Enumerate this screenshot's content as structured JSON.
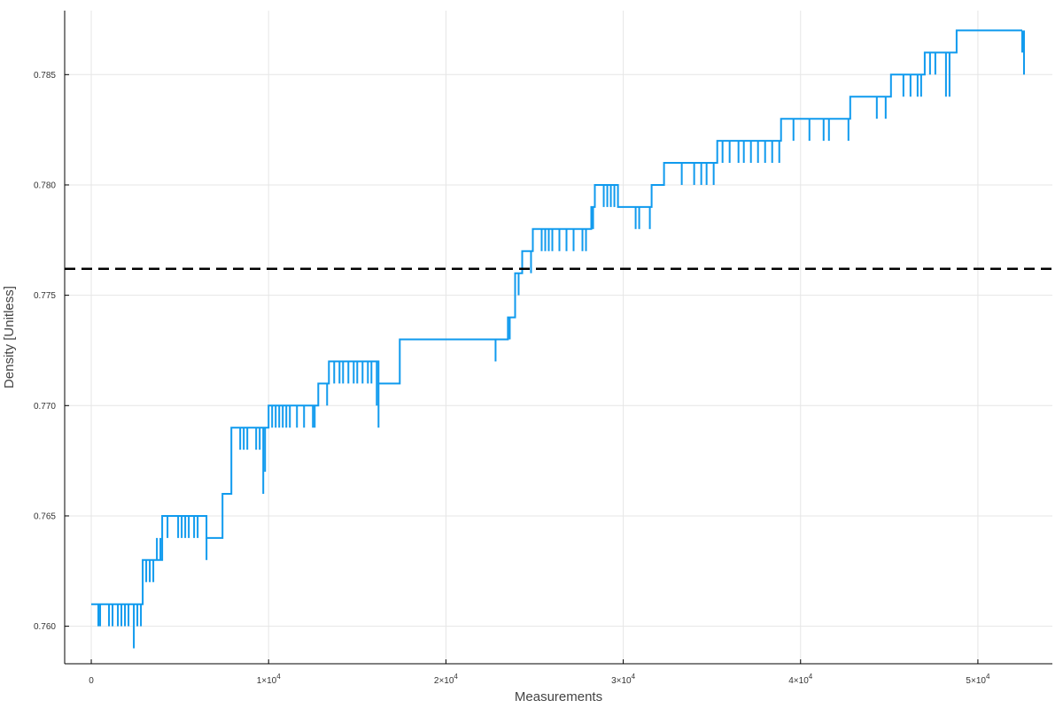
{
  "chart_data": {
    "type": "line",
    "title": "",
    "xlabel": "Measurements",
    "ylabel": "Density [Unitless]",
    "xlim": [
      -1500,
      54200
    ],
    "ylim": [
      0.7583,
      0.7879
    ],
    "grid": true,
    "legend": "none",
    "x_ticks": [
      {
        "value": 0,
        "label": "0",
        "exp": ""
      },
      {
        "value": 10000,
        "label": "1×10",
        "exp": "4"
      },
      {
        "value": 20000,
        "label": "2×10",
        "exp": "4"
      },
      {
        "value": 30000,
        "label": "3×10",
        "exp": "4"
      },
      {
        "value": 40000,
        "label": "4×10",
        "exp": "4"
      },
      {
        "value": 50000,
        "label": "5×10",
        "exp": "4"
      }
    ],
    "y_ticks": [
      {
        "value": 0.76,
        "label": "0.760"
      },
      {
        "value": 0.765,
        "label": "0.765"
      },
      {
        "value": 0.77,
        "label": "0.770"
      },
      {
        "value": 0.775,
        "label": "0.775"
      },
      {
        "value": 0.78,
        "label": "0.780"
      },
      {
        "value": 0.785,
        "label": "0.785"
      }
    ],
    "reference_line": {
      "y": 0.7762,
      "style": "dashed",
      "color": "#000000"
    },
    "series": [
      {
        "color": "#0f9aee",
        "steps": [
          {
            "x": 0,
            "y": 0.761
          },
          {
            "x": 2900,
            "y": 0.763
          },
          {
            "x": 4000,
            "y": 0.765
          },
          {
            "x": 6500,
            "y": 0.764
          },
          {
            "x": 7400,
            "y": 0.766
          },
          {
            "x": 7900,
            "y": 0.769
          },
          {
            "x": 10000,
            "y": 0.77
          },
          {
            "x": 12800,
            "y": 0.771
          },
          {
            "x": 13400,
            "y": 0.772
          },
          {
            "x": 16200,
            "y": 0.771
          },
          {
            "x": 17400,
            "y": 0.773
          },
          {
            "x": 23500,
            "y": 0.774
          },
          {
            "x": 23900,
            "y": 0.776
          },
          {
            "x": 24300,
            "y": 0.777
          },
          {
            "x": 24900,
            "y": 0.778
          },
          {
            "x": 28200,
            "y": 0.779
          },
          {
            "x": 28400,
            "y": 0.78
          },
          {
            "x": 29700,
            "y": 0.779
          },
          {
            "x": 31600,
            "y": 0.78
          },
          {
            "x": 32300,
            "y": 0.781
          },
          {
            "x": 35300,
            "y": 0.782
          },
          {
            "x": 38900,
            "y": 0.783
          },
          {
            "x": 42800,
            "y": 0.784
          },
          {
            "x": 45100,
            "y": 0.785
          },
          {
            "x": 47000,
            "y": 0.786
          },
          {
            "x": 48800,
            "y": 0.787
          },
          {
            "x": 52500,
            "y": 0.787
          }
        ],
        "spikes": [
          {
            "x": 400,
            "y": 0.76
          },
          {
            "x": 500,
            "y": 0.76
          },
          {
            "x": 1000,
            "y": 0.76
          },
          {
            "x": 1200,
            "y": 0.76
          },
          {
            "x": 1500,
            "y": 0.76
          },
          {
            "x": 1700,
            "y": 0.76
          },
          {
            "x": 1900,
            "y": 0.76
          },
          {
            "x": 2100,
            "y": 0.76
          },
          {
            "x": 2400,
            "y": 0.759
          },
          {
            "x": 2600,
            "y": 0.76
          },
          {
            "x": 2800,
            "y": 0.76
          },
          {
            "x": 3100,
            "y": 0.762
          },
          {
            "x": 3300,
            "y": 0.762
          },
          {
            "x": 3500,
            "y": 0.762
          },
          {
            "x": 3700,
            "y": 0.764
          },
          {
            "x": 3900,
            "y": 0.764
          },
          {
            "x": 4300,
            "y": 0.764
          },
          {
            "x": 4900,
            "y": 0.764
          },
          {
            "x": 5100,
            "y": 0.764
          },
          {
            "x": 5300,
            "y": 0.764
          },
          {
            "x": 5500,
            "y": 0.764
          },
          {
            "x": 5800,
            "y": 0.764
          },
          {
            "x": 6000,
            "y": 0.764
          },
          {
            "x": 6500,
            "y": 0.763
          },
          {
            "x": 6800,
            "y": 0.764
          },
          {
            "x": 7000,
            "y": 0.764
          },
          {
            "x": 7200,
            "y": 0.764
          },
          {
            "x": 7300,
            "y": 0.764
          },
          {
            "x": 7600,
            "y": 0.766
          },
          {
            "x": 7800,
            "y": 0.766
          },
          {
            "x": 8400,
            "y": 0.768
          },
          {
            "x": 8600,
            "y": 0.768
          },
          {
            "x": 8800,
            "y": 0.768
          },
          {
            "x": 9300,
            "y": 0.768
          },
          {
            "x": 9500,
            "y": 0.768
          },
          {
            "x": 9700,
            "y": 0.766
          },
          {
            "x": 9800,
            "y": 0.767
          },
          {
            "x": 10200,
            "y": 0.769
          },
          {
            "x": 10400,
            "y": 0.769
          },
          {
            "x": 10600,
            "y": 0.769
          },
          {
            "x": 10800,
            "y": 0.769
          },
          {
            "x": 11000,
            "y": 0.769
          },
          {
            "x": 11200,
            "y": 0.769
          },
          {
            "x": 11600,
            "y": 0.769
          },
          {
            "x": 12000,
            "y": 0.769
          },
          {
            "x": 12500,
            "y": 0.769
          },
          {
            "x": 12600,
            "y": 0.769
          },
          {
            "x": 13300,
            "y": 0.77
          },
          {
            "x": 13700,
            "y": 0.771
          },
          {
            "x": 14000,
            "y": 0.771
          },
          {
            "x": 14200,
            "y": 0.771
          },
          {
            "x": 14500,
            "y": 0.771
          },
          {
            "x": 14800,
            "y": 0.771
          },
          {
            "x": 15000,
            "y": 0.771
          },
          {
            "x": 15300,
            "y": 0.771
          },
          {
            "x": 15600,
            "y": 0.771
          },
          {
            "x": 15800,
            "y": 0.771
          },
          {
            "x": 16200,
            "y": 0.769
          },
          {
            "x": 16100,
            "y": 0.77
          },
          {
            "x": 16600,
            "y": 0.771
          },
          {
            "x": 16900,
            "y": 0.771
          },
          {
            "x": 17300,
            "y": 0.771
          },
          {
            "x": 22800,
            "y": 0.772
          },
          {
            "x": 23600,
            "y": 0.773
          },
          {
            "x": 24100,
            "y": 0.775
          },
          {
            "x": 24800,
            "y": 0.776
          },
          {
            "x": 25400,
            "y": 0.777
          },
          {
            "x": 25600,
            "y": 0.777
          },
          {
            "x": 25800,
            "y": 0.777
          },
          {
            "x": 26000,
            "y": 0.777
          },
          {
            "x": 26400,
            "y": 0.777
          },
          {
            "x": 26800,
            "y": 0.777
          },
          {
            "x": 27200,
            "y": 0.777
          },
          {
            "x": 27700,
            "y": 0.777
          },
          {
            "x": 27900,
            "y": 0.777
          },
          {
            "x": 28300,
            "y": 0.778
          },
          {
            "x": 28900,
            "y": 0.779
          },
          {
            "x": 29100,
            "y": 0.779
          },
          {
            "x": 29300,
            "y": 0.779
          },
          {
            "x": 29500,
            "y": 0.779
          },
          {
            "x": 29700,
            "y": 0.779
          },
          {
            "x": 30700,
            "y": 0.778
          },
          {
            "x": 30900,
            "y": 0.778
          },
          {
            "x": 31500,
            "y": 0.778
          },
          {
            "x": 33300,
            "y": 0.78
          },
          {
            "x": 34000,
            "y": 0.78
          },
          {
            "x": 34400,
            "y": 0.78
          },
          {
            "x": 34700,
            "y": 0.78
          },
          {
            "x": 35100,
            "y": 0.78
          },
          {
            "x": 35600,
            "y": 0.781
          },
          {
            "x": 36000,
            "y": 0.781
          },
          {
            "x": 36500,
            "y": 0.781
          },
          {
            "x": 36800,
            "y": 0.781
          },
          {
            "x": 37200,
            "y": 0.781
          },
          {
            "x": 37600,
            "y": 0.781
          },
          {
            "x": 38000,
            "y": 0.781
          },
          {
            "x": 38400,
            "y": 0.781
          },
          {
            "x": 38800,
            "y": 0.781
          },
          {
            "x": 39600,
            "y": 0.782
          },
          {
            "x": 40500,
            "y": 0.782
          },
          {
            "x": 41300,
            "y": 0.782
          },
          {
            "x": 41600,
            "y": 0.782
          },
          {
            "x": 42700,
            "y": 0.782
          },
          {
            "x": 44300,
            "y": 0.783
          },
          {
            "x": 44800,
            "y": 0.783
          },
          {
            "x": 45800,
            "y": 0.784
          },
          {
            "x": 46200,
            "y": 0.784
          },
          {
            "x": 46600,
            "y": 0.784
          },
          {
            "x": 46800,
            "y": 0.784
          },
          {
            "x": 47300,
            "y": 0.785
          },
          {
            "x": 47600,
            "y": 0.785
          },
          {
            "x": 48200,
            "y": 0.784
          },
          {
            "x": 48400,
            "y": 0.784
          },
          {
            "x": 52500,
            "y": 0.786
          },
          {
            "x": 52600,
            "y": 0.785
          }
        ]
      }
    ]
  }
}
